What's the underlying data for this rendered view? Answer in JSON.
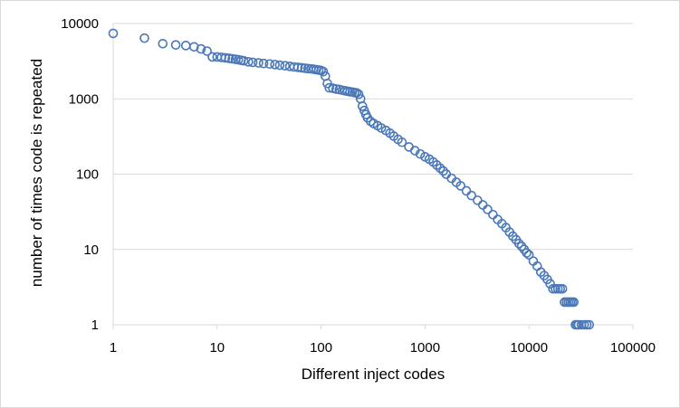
{
  "chart_data": {
    "type": "scatter",
    "title": "",
    "xlabel": "Different inject codes",
    "ylabel": "number of times code is repeated",
    "x_scale": "log",
    "y_scale": "log",
    "xlim": [
      1,
      100000
    ],
    "ylim": [
      1,
      10000
    ],
    "x_ticks": [
      "1",
      "10",
      "100",
      "1000",
      "10000",
      "100000"
    ],
    "y_ticks": [
      "1",
      "10",
      "100",
      "1000",
      "10000"
    ],
    "grid": "horizontal",
    "legend": "none",
    "marker": "open-circle",
    "colors": {
      "series": "#4a78b8",
      "grid": "#d9d9d9"
    },
    "series": [
      {
        "x": [
          1,
          2,
          3,
          4,
          5,
          6,
          7,
          8,
          9,
          10,
          11,
          12,
          13,
          14,
          15,
          16,
          17,
          18,
          20,
          22,
          25,
          28,
          32,
          36,
          40,
          45,
          50,
          55,
          60,
          65,
          70,
          75,
          80,
          85,
          90,
          95,
          100,
          105,
          110,
          115,
          120,
          130,
          140,
          150,
          160,
          170,
          180,
          190,
          200,
          210,
          220,
          230,
          240,
          250,
          260,
          270,
          280,
          300,
          320,
          350,
          380,
          420,
          460,
          500,
          550,
          600,
          700,
          800,
          900,
          1000,
          1100,
          1200,
          1300,
          1400,
          1500,
          1600,
          1800,
          2000,
          2200,
          2500,
          2800,
          3200,
          3600,
          4000,
          4500,
          5000,
          5500,
          6000,
          6500,
          7000,
          7500,
          8000,
          8500,
          9000,
          9500,
          10000,
          11000,
          12000,
          13000,
          14000,
          15000,
          16000,
          17000,
          18000,
          19000,
          20000,
          21000,
          22000,
          23000,
          24000,
          25000,
          26000,
          27000,
          28000,
          29000,
          30000,
          32000,
          34000,
          36000,
          38000
        ],
        "y": [
          7400,
          6400,
          5400,
          5200,
          5100,
          4900,
          4600,
          4300,
          3600,
          3600,
          3550,
          3500,
          3450,
          3400,
          3350,
          3300,
          3250,
          3200,
          3100,
          3050,
          3000,
          2950,
          2900,
          2850,
          2800,
          2750,
          2700,
          2650,
          2620,
          2580,
          2550,
          2520,
          2500,
          2470,
          2440,
          2410,
          2380,
          2300,
          2000,
          1600,
          1400,
          1380,
          1350,
          1330,
          1300,
          1280,
          1260,
          1240,
          1230,
          1210,
          1200,
          1150,
          1000,
          800,
          700,
          620,
          560,
          500,
          470,
          440,
          410,
          380,
          350,
          320,
          290,
          265,
          230,
          205,
          185,
          170,
          158,
          145,
          132,
          120,
          110,
          100,
          88,
          78,
          70,
          60,
          52,
          45,
          39,
          34,
          29,
          25,
          22,
          19.5,
          17,
          15,
          13.5,
          12,
          11,
          10,
          9,
          8.5,
          7,
          6,
          5,
          4.5,
          4,
          3.5,
          3,
          3,
          3,
          3,
          3,
          2,
          2,
          2,
          2,
          2,
          2,
          1,
          1,
          1,
          1,
          1,
          1,
          1
        ]
      }
    ]
  }
}
